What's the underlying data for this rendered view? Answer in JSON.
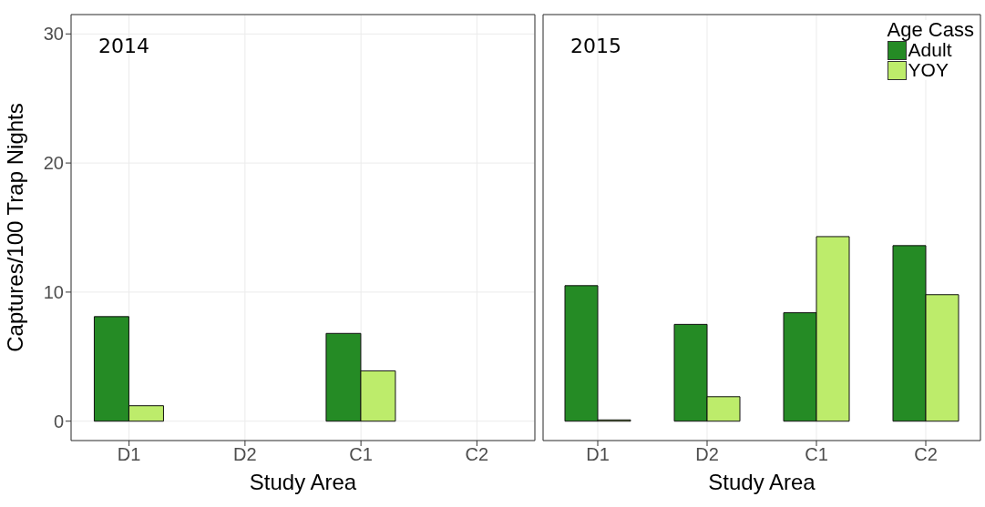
{
  "chart_data": [
    {
      "type": "bar",
      "annotations": [
        "2014"
      ],
      "xlabel": "Study Area",
      "ylabel": "Captures/100 Trap Nights",
      "categories": [
        "D1",
        "D2",
        "C1",
        "C2"
      ],
      "series": [
        {
          "color": "#258b25",
          "values": [
            8.1,
            0,
            6.8,
            0
          ]
        },
        {
          "color": "#bdec6b",
          "values": [
            1.2,
            0,
            3.9,
            0
          ]
        }
      ],
      "ylim": [
        -1.5,
        31.5
      ],
      "yticks": [
        0,
        10,
        20,
        30
      ],
      "grid": true
    },
    {
      "type": "bar",
      "annotations": [
        "2015"
      ],
      "xlabel": "Study Area",
      "categories": [
        "D1",
        "D2",
        "C1",
        "C2"
      ],
      "series": [
        {
          "name": "Adult",
          "color": "#258b25",
          "values": [
            10.5,
            7.5,
            8.4,
            13.6
          ]
        },
        {
          "name": "YOY",
          "color": "#bdec6b",
          "values": [
            0.1,
            1.9,
            14.3,
            9.8
          ]
        }
      ],
      "ylim": [
        -1.5,
        31.5
      ],
      "yticks": [
        0,
        10,
        20,
        30
      ],
      "grid": true,
      "tick_labels": "x",
      "legend": "top right",
      "legend_title": "Age Cass"
    }
  ]
}
